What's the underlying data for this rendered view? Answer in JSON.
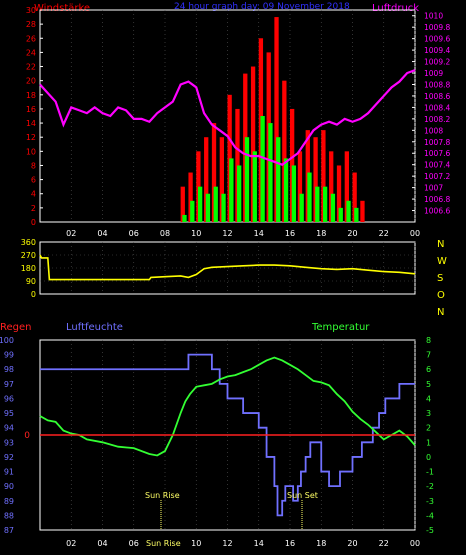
{
  "colors": {
    "background": "#000000",
    "axis": "#ffffff",
    "wind_gust": "#ff0000",
    "wind_avg": "#00ff00",
    "pressure": "#ff00ff",
    "direction": "#ffff00",
    "humidity": "#7070ff",
    "temperature": "#33ff33",
    "rain": "#ff2020",
    "title": "#3030ff",
    "sun": "#ffff66"
  },
  "header": {
    "wind_label": "Windstärke",
    "title": "24 hour graph day: 09 November 2018",
    "pressure_label": "Luftdruck"
  },
  "x_ticks": [
    "02",
    "04",
    "06",
    "08",
    "10",
    "12",
    "14",
    "16",
    "18",
    "20",
    "22",
    "00"
  ],
  "x_ticks_bottom": [
    "02",
    "04",
    "06",
    "",
    "10",
    "12",
    "14",
    "16",
    "18",
    "20",
    "22",
    "00"
  ],
  "chart_data": [
    {
      "type": "line",
      "name": "wind-pressure",
      "x_range_hours": [
        0,
        24
      ],
      "y_left": {
        "ylim": [
          0,
          30
        ],
        "ticks": [
          "0",
          "2",
          "4",
          "6",
          "8",
          "10",
          "12",
          "14",
          "16",
          "18",
          "20",
          "22",
          "24",
          "26",
          "28",
          "30"
        ]
      },
      "y_right": {
        "ylim": [
          1006.4,
          1010.1
        ],
        "ticks": [
          "1006.6",
          "1006.8",
          "1007",
          "1007.2",
          "1007.4",
          "1007.6",
          "1007.8",
          "1008",
          "1008.2",
          "1008.4",
          "1008.6",
          "1008.8",
          "1009",
          "1009.2",
          "1009.4",
          "1009.6",
          "1009.8",
          "1010"
        ]
      },
      "series": [
        {
          "name": "Luftdruck",
          "x": [
            0,
            0.5,
            1,
            1.5,
            2,
            2.5,
            3,
            3.5,
            4,
            4.5,
            5,
            5.5,
            6,
            6.5,
            7,
            7.5,
            8,
            8.5,
            9,
            9.5,
            10,
            10.5,
            11,
            11.5,
            12,
            12.5,
            13,
            13.5,
            14,
            14.5,
            15,
            15.5,
            16,
            16.5,
            17,
            17.5,
            18,
            18.5,
            19,
            19.5,
            20,
            20.5,
            21,
            21.5,
            22,
            22.5,
            23,
            23.5,
            24
          ],
          "y": [
            1008.8,
            1008.65,
            1008.5,
            1008.1,
            1008.4,
            1008.35,
            1008.3,
            1008.4,
            1008.3,
            1008.25,
            1008.4,
            1008.35,
            1008.2,
            1008.2,
            1008.15,
            1008.3,
            1008.4,
            1008.5,
            1008.8,
            1008.85,
            1008.75,
            1008.3,
            1008.1,
            1008.0,
            1007.9,
            1007.7,
            1007.6,
            1007.55,
            1007.55,
            1007.5,
            1007.45,
            1007.4,
            1007.5,
            1007.6,
            1007.8,
            1008.0,
            1008.1,
            1008.15,
            1008.1,
            1008.2,
            1008.15,
            1008.2,
            1008.3,
            1008.45,
            1008.6,
            1008.75,
            1008.85,
            1009.0,
            1009.05
          ]
        },
        {
          "name": "Windstärke",
          "x": [
            9,
            9.5,
            10,
            10.5,
            11,
            11.5,
            12,
            12.5,
            13,
            13.5,
            14,
            14.5,
            15,
            15.5,
            16,
            16.5,
            17,
            17.5,
            18,
            18.5,
            19,
            19.5,
            20,
            20.5
          ],
          "y": [
            1,
            3,
            5,
            4,
            5,
            4,
            9,
            8,
            12,
            10,
            15,
            14,
            12,
            9,
            8,
            4,
            7,
            5,
            5,
            4,
            2,
            3,
            2,
            0
          ]
        },
        {
          "name": "Böen",
          "x": [
            9,
            9.5,
            10,
            10.5,
            11,
            11.5,
            12,
            12.5,
            13,
            13.5,
            14,
            14.5,
            15,
            15.5,
            16,
            16.5,
            17,
            17.5,
            18,
            18.5,
            19,
            19.5,
            20,
            20.5
          ],
          "y": [
            5,
            7,
            10,
            12,
            14,
            12,
            18,
            16,
            21,
            22,
            26,
            24,
            29,
            20,
            16,
            10,
            13,
            12,
            13,
            10,
            8,
            10,
            7,
            3
          ]
        }
      ]
    },
    {
      "type": "line",
      "name": "wind-direction",
      "ylim": [
        0,
        360
      ],
      "y_ticks": [
        "0",
        "90",
        "180",
        "270",
        "360"
      ],
      "right_labels": [
        "N",
        "W",
        "S",
        "O",
        "N"
      ],
      "series": [
        {
          "name": "Windrichtung",
          "x": [
            0,
            0.1,
            0.5,
            0.6,
            1,
            2,
            4,
            6,
            7,
            7.1,
            8,
            9,
            9.5,
            10,
            10.5,
            11,
            12,
            13,
            14,
            15,
            16,
            17,
            18,
            19,
            20,
            21,
            22,
            23,
            24
          ],
          "y": [
            270,
            250,
            250,
            100,
            100,
            100,
            100,
            100,
            100,
            115,
            120,
            125,
            115,
            135,
            175,
            185,
            190,
            195,
            200,
            200,
            195,
            185,
            175,
            170,
            175,
            165,
            155,
            150,
            140
          ]
        }
      ]
    },
    {
      "type": "line",
      "name": "humidity-temperature",
      "y_left": {
        "ylim": [
          87,
          100
        ],
        "ticks": [
          "100",
          "99",
          "98",
          "97",
          "96",
          "95",
          "94",
          "93",
          "92",
          "91",
          "90",
          "89",
          "88",
          "87"
        ]
      },
      "y_right": {
        "ylim": [
          -5,
          8
        ],
        "ticks": [
          "8",
          "7",
          "6",
          "5",
          "4",
          "3",
          "2",
          "1",
          "0",
          "-1",
          "-2",
          "-3",
          "-4",
          "-5"
        ]
      },
      "rain_zero_label": "0",
      "series": [
        {
          "name": "Luftfeuchte",
          "x": [
            0,
            9.5,
            9.5,
            11,
            11,
            11.5,
            11.5,
            12,
            12,
            13,
            13,
            13.5,
            13.5,
            14,
            14,
            14.5,
            14.5,
            15,
            15,
            15.2,
            15.2,
            15.5,
            15.5,
            15.7,
            15.7,
            16.2,
            16.2,
            16.5,
            16.5,
            16.7,
            16.7,
            17,
            17,
            17.3,
            17.3,
            17.6,
            17.6,
            18,
            18,
            18.5,
            18.5,
            19.2,
            19.2,
            20,
            20,
            20.6,
            20.6,
            21.3,
            21.3,
            21.7,
            21.7,
            22.1,
            22.1,
            22.5,
            22.5,
            23,
            23,
            24
          ],
          "y": [
            98,
            98,
            99,
            99,
            98,
            98,
            97,
            97,
            96,
            96,
            95,
            95,
            95,
            95,
            94,
            94,
            92,
            92,
            90,
            90,
            88,
            88,
            89,
            89,
            90,
            90,
            89,
            89,
            90,
            90,
            91,
            91,
            92,
            92,
            93,
            93,
            93,
            93,
            91,
            91,
            90,
            90,
            91,
            91,
            92,
            92,
            93,
            93,
            94,
            94,
            95,
            95,
            96,
            96,
            96,
            96,
            97,
            97
          ]
        },
        {
          "name": "Temperatur",
          "x": [
            0,
            0.5,
            1,
            1.5,
            2,
            2.5,
            3,
            4,
            5,
            6,
            7,
            7.5,
            8,
            8.5,
            9,
            9.3,
            9.6,
            10,
            10.5,
            11,
            11.5,
            12,
            12.5,
            13,
            13.5,
            14,
            14.5,
            15,
            15.5,
            16,
            16.5,
            17,
            17.5,
            18,
            18.5,
            19,
            19.5,
            20,
            20.5,
            21,
            21.5,
            22,
            22.5,
            23,
            23.5,
            24
          ],
          "y": [
            2.8,
            2.5,
            2.4,
            1.8,
            1.6,
            1.5,
            1.2,
            1.0,
            0.7,
            0.6,
            0.2,
            0.1,
            0.4,
            1.5,
            3.0,
            3.8,
            4.3,
            4.8,
            4.9,
            5.0,
            5.3,
            5.5,
            5.6,
            5.8,
            6.0,
            6.3,
            6.6,
            6.8,
            6.6,
            6.3,
            6.0,
            5.6,
            5.2,
            5.1,
            4.9,
            4.3,
            3.8,
            3.1,
            2.6,
            2.2,
            1.7,
            1.2,
            1.5,
            1.8,
            1.4,
            0.8
          ]
        }
      ]
    }
  ],
  "bottom_labels": {
    "rain": "Regen",
    "humidity": "Luftfeuchte",
    "temperature": "Temperatur",
    "sun_rise": "Sun Rise",
    "sun_set": "Sun Set",
    "sun_bottom": "Sun Rise"
  }
}
